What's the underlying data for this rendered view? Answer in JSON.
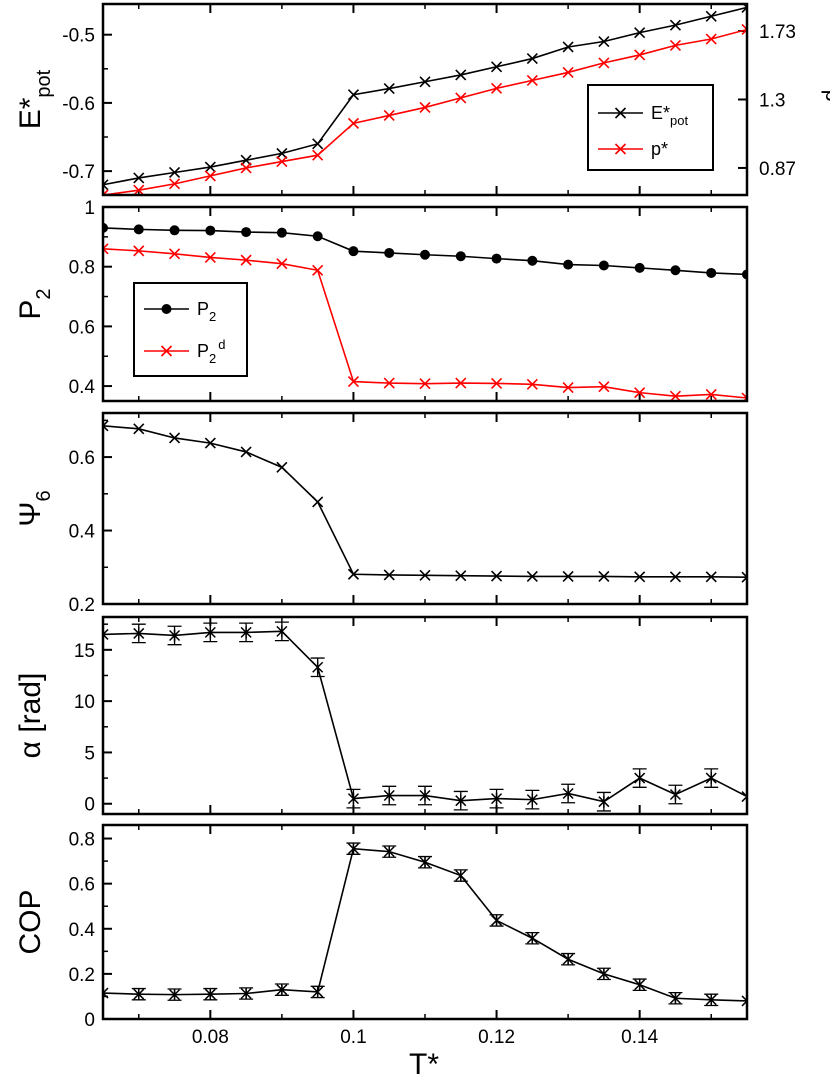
{
  "x_axis": {
    "label": "T*",
    "range": [
      0.065,
      0.155
    ],
    "ticks": [
      0.08,
      0.1,
      0.12,
      0.14
    ],
    "tick_labels": [
      "0.08",
      "0.1",
      "0.12",
      "0.14"
    ]
  },
  "chart_data": [
    {
      "type": "line",
      "panel": "energy-pressure",
      "ylabel": "E*",
      "ylabel_sub": "pot",
      "ylim": [
        -0.735,
        -0.455
      ],
      "yticks": [
        -0.7,
        -0.6,
        -0.5
      ],
      "ytick_labels": [
        "-0.7",
        "-0.6",
        "-0.5"
      ],
      "y2label": "p*",
      "y2lim": [
        0.7,
        1.9
      ],
      "y2ticks": [
        0.87,
        1.3,
        1.73
      ],
      "y2tick_labels": [
        "0.87",
        "1.3",
        "1.73"
      ],
      "legend": {
        "position": "right",
        "entries": [
          {
            "label": "E*",
            "sub": "pot"
          },
          {
            "label": "p*",
            "sub": ""
          }
        ]
      },
      "x": [
        0.065,
        0.07,
        0.075,
        0.08,
        0.085,
        0.09,
        0.095,
        0.1,
        0.105,
        0.11,
        0.115,
        0.12,
        0.125,
        0.13,
        0.135,
        0.14,
        0.145,
        0.15,
        0.155
      ],
      "series": [
        {
          "name": "E*pot",
          "axis": "left",
          "color": "#000000",
          "marker": "x",
          "values": [
            -0.72,
            -0.71,
            -0.702,
            -0.694,
            -0.684,
            -0.674,
            -0.66,
            -0.588,
            -0.579,
            -0.569,
            -0.559,
            -0.547,
            -0.535,
            -0.518,
            -0.51,
            -0.497,
            -0.486,
            -0.473,
            -0.46
          ]
        },
        {
          "name": "p*",
          "axis": "right",
          "color": "#ff0000",
          "marker": "x",
          "values": [
            0.7,
            0.73,
            0.77,
            0.82,
            0.87,
            0.91,
            0.95,
            1.15,
            1.2,
            1.25,
            1.31,
            1.37,
            1.42,
            1.47,
            1.53,
            1.58,
            1.64,
            1.68,
            1.74
          ]
        }
      ]
    },
    {
      "type": "line",
      "panel": "p2",
      "ylabel": "P",
      "ylabel_sub": "2",
      "ylim": [
        0.35,
        1.0
      ],
      "yticks": [
        0.4,
        0.6,
        0.8,
        1.0
      ],
      "ytick_labels": [
        "0.4",
        "0.6",
        "0.8",
        "1"
      ],
      "legend": {
        "position": "left",
        "entries": [
          {
            "label": "P",
            "sub": "2",
            "sup": ""
          },
          {
            "label": "P",
            "sub": "2",
            "sup": "d"
          }
        ]
      },
      "x": [
        0.065,
        0.07,
        0.075,
        0.08,
        0.085,
        0.09,
        0.095,
        0.1,
        0.105,
        0.11,
        0.115,
        0.12,
        0.125,
        0.13,
        0.135,
        0.14,
        0.145,
        0.15,
        0.155
      ],
      "series": [
        {
          "name": "P2",
          "color": "#000000",
          "marker": "circle",
          "values": [
            0.93,
            0.925,
            0.922,
            0.921,
            0.916,
            0.914,
            0.902,
            0.852,
            0.846,
            0.84,
            0.835,
            0.827,
            0.82,
            0.807,
            0.804,
            0.796,
            0.788,
            0.779,
            0.774
          ]
        },
        {
          "name": "P2d",
          "color": "#ff0000",
          "marker": "x",
          "values": [
            0.86,
            0.853,
            0.843,
            0.831,
            0.822,
            0.81,
            0.788,
            0.415,
            0.41,
            0.408,
            0.41,
            0.409,
            0.406,
            0.395,
            0.398,
            0.378,
            0.366,
            0.372,
            0.36
          ]
        }
      ]
    },
    {
      "type": "line",
      "panel": "psi6",
      "ylabel": "Ψ",
      "ylabel_sub": "6",
      "ylim": [
        0.2,
        0.72
      ],
      "yticks": [
        0.2,
        0.4,
        0.6
      ],
      "ytick_labels": [
        "0.2",
        "0.4",
        "0.6"
      ],
      "x": [
        0.065,
        0.07,
        0.075,
        0.08,
        0.085,
        0.09,
        0.095,
        0.1,
        0.105,
        0.11,
        0.115,
        0.12,
        0.125,
        0.13,
        0.135,
        0.14,
        0.145,
        0.15,
        0.155
      ],
      "series": [
        {
          "name": "Psi6",
          "color": "#000000",
          "marker": "x",
          "values": [
            0.685,
            0.677,
            0.652,
            0.638,
            0.614,
            0.572,
            0.478,
            0.281,
            0.279,
            0.278,
            0.277,
            0.276,
            0.275,
            0.275,
            0.275,
            0.274,
            0.274,
            0.274,
            0.273
          ]
        }
      ]
    },
    {
      "type": "line",
      "panel": "alpha",
      "ylabel": "α [rad]",
      "ylim": [
        -1.0,
        18.2
      ],
      "yticks": [
        0,
        5,
        10,
        15
      ],
      "ytick_labels": [
        "0",
        "5",
        "10",
        "15"
      ],
      "x": [
        0.065,
        0.07,
        0.075,
        0.08,
        0.085,
        0.09,
        0.095,
        0.1,
        0.105,
        0.11,
        0.115,
        0.12,
        0.125,
        0.13,
        0.135,
        0.14,
        0.145,
        0.15,
        0.155
      ],
      "series": [
        {
          "name": "alpha",
          "color": "#000000",
          "marker": "asterisk",
          "values": [
            16.5,
            16.6,
            16.4,
            16.7,
            16.7,
            16.8,
            13.3,
            0.5,
            0.8,
            0.8,
            0.3,
            0.5,
            0.4,
            1.0,
            0.2,
            2.5,
            0.9,
            2.5,
            0.7
          ],
          "errors": [
            0,
            0.9,
            0.9,
            0.9,
            0.9,
            0.9,
            0.9,
            0.9,
            0.9,
            0.9,
            0.9,
            0.9,
            0.9,
            0.9,
            0.9,
            0.9,
            0.9,
            0.9,
            0
          ]
        }
      ]
    },
    {
      "type": "line",
      "panel": "cop",
      "ylabel": "COP",
      "ylim": [
        0.0,
        0.86
      ],
      "yticks": [
        0,
        0.2,
        0.4,
        0.6,
        0.8
      ],
      "ytick_labels": [
        "0",
        "0.2",
        "0.4",
        "0.6",
        "0.8"
      ],
      "x": [
        0.065,
        0.07,
        0.075,
        0.08,
        0.085,
        0.09,
        0.095,
        0.1,
        0.105,
        0.11,
        0.115,
        0.12,
        0.125,
        0.13,
        0.135,
        0.14,
        0.145,
        0.15,
        0.155
      ],
      "series": [
        {
          "name": "COP",
          "color": "#000000",
          "marker": "asterisk",
          "values": [
            0.115,
            0.11,
            0.108,
            0.11,
            0.113,
            0.13,
            0.12,
            0.755,
            0.742,
            0.695,
            0.636,
            0.437,
            0.358,
            0.265,
            0.2,
            0.152,
            0.092,
            0.085,
            0.08
          ],
          "errors": [
            0,
            0.025,
            0.025,
            0.025,
            0.025,
            0.025,
            0.025,
            0.025,
            0.025,
            0.025,
            0.025,
            0.025,
            0.025,
            0.025,
            0.025,
            0.025,
            0.025,
            0.025,
            0
          ]
        }
      ]
    }
  ]
}
